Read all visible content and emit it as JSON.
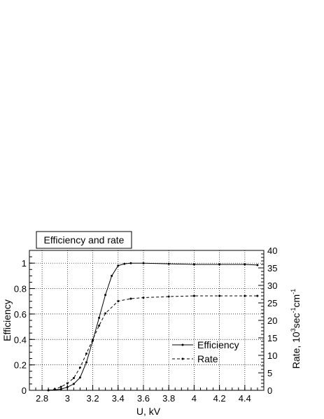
{
  "chart_data": {
    "type": "line",
    "title": "Efficiency and rate",
    "xlabel": "U, kV",
    "ylabel": "Efficiency",
    "y2label_parts": [
      "Rate, 10",
      "3",
      "sec",
      "-1",
      "cm",
      "-1"
    ],
    "xlim": [
      2.7,
      4.55
    ],
    "ylim": [
      0,
      1.1
    ],
    "y2lim": [
      0,
      40
    ],
    "x_ticks": [
      2.8,
      3,
      3.2,
      3.4,
      3.6,
      3.8,
      4,
      4.2,
      4.4
    ],
    "x_tick_labels": [
      "2.8",
      "3",
      "3.2",
      "3.4",
      "3.6",
      "3.8",
      "4",
      "4.2",
      "4.4"
    ],
    "y_ticks": [
      0,
      0.2,
      0.4,
      0.6,
      0.8,
      1
    ],
    "y_tick_labels": [
      "0",
      "0.2",
      "0.4",
      "0.6",
      "0.8",
      "1"
    ],
    "y2_ticks": [
      0,
      5,
      10,
      15,
      20,
      25,
      30,
      35,
      40
    ],
    "y2_tick_labels": [
      "0",
      "5",
      "10",
      "15",
      "20",
      "25",
      "30",
      "35",
      "40"
    ],
    "grid": true,
    "legend_position": "bottom-right",
    "series": [
      {
        "name": "Efficiency",
        "axis": "left",
        "style": "solid",
        "x": [
          2.85,
          2.9,
          2.95,
          3.0,
          3.05,
          3.1,
          3.15,
          3.2,
          3.25,
          3.3,
          3.35,
          3.4,
          3.45,
          3.5,
          3.6,
          3.8,
          4.0,
          4.2,
          4.4,
          4.5
        ],
        "y": [
          0.0,
          0.005,
          0.01,
          0.025,
          0.05,
          0.1,
          0.22,
          0.39,
          0.57,
          0.75,
          0.9,
          0.98,
          0.995,
          1.0,
          1.0,
          0.995,
          0.99,
          0.99,
          0.99,
          0.985
        ]
      },
      {
        "name": "Rate",
        "axis": "right",
        "style": "dashed",
        "x": [
          2.85,
          2.9,
          2.95,
          3.0,
          3.05,
          3.1,
          3.15,
          3.2,
          3.25,
          3.3,
          3.4,
          3.5,
          3.6,
          3.8,
          4.0,
          4.2,
          4.4,
          4.5
        ],
        "y": [
          0.0,
          0.3,
          1.0,
          2.0,
          3.5,
          6.5,
          10.5,
          14.5,
          18.5,
          22.0,
          25.5,
          26.2,
          26.5,
          26.8,
          27.0,
          27.0,
          27.0,
          27.0
        ]
      }
    ]
  }
}
